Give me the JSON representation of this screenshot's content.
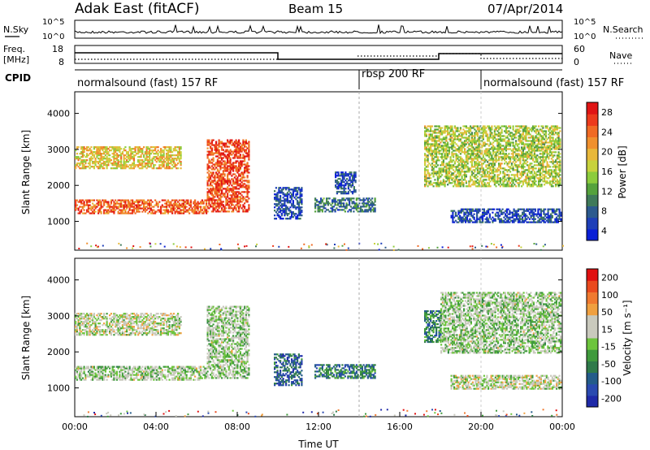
{
  "header": {
    "station": "Adak East (fitACF)",
    "beam": "Beam 15",
    "date": "07/Apr/2014"
  },
  "noise_panel": {
    "left_label": "N.Sky",
    "right_label": "N.Search",
    "left_ticks": [
      "10^5",
      "10^0"
    ],
    "right_ticks": [
      "10^5",
      "10^0"
    ]
  },
  "freq_panel": {
    "left_label": "Freq.",
    "left_unit": "[MHz]",
    "right_label": "Nave",
    "left_ticks": [
      "18",
      "8"
    ],
    "right_ticks": [
      "60",
      "0"
    ]
  },
  "cpid_panel": {
    "label": "CPID",
    "modes": [
      {
        "name": "normalsound (fast) 157 RF",
        "start_h": 0,
        "end_h": 14
      },
      {
        "name": "rbsp 200 RF",
        "start_h": 14,
        "end_h": 20
      },
      {
        "name": "normalsound (fast) 157 RF",
        "start_h": 20,
        "end_h": 24
      }
    ]
  },
  "chart_data": [
    {
      "type": "heatmap",
      "name": "power",
      "ylabel": "Slant Range [km]",
      "yticks": [
        1000,
        2000,
        3000,
        4000
      ],
      "ylim": [
        200,
        4600
      ],
      "xlim": [
        0,
        24
      ],
      "colorbar": {
        "label": "Power [dB]",
        "ticks": [
          "28",
          "24",
          "20",
          "16",
          "12",
          "8",
          "4"
        ],
        "colors": [
          "#0a1fd6",
          "#1e3fb8",
          "#2c5a8e",
          "#3f7a5a",
          "#55a23c",
          "#8ccc3c",
          "#c8d23c",
          "#e8b83a",
          "#f0902e",
          "#f06a24",
          "#ec3a1c",
          "#e01414"
        ]
      },
      "regions": [
        {
          "t0": 0.0,
          "t1": 6.5,
          "r0": 1250,
          "r1": 1650,
          "level": 0.8
        },
        {
          "t0": 0.0,
          "t1": 5.2,
          "r0": 2500,
          "r1": 3100,
          "level": 0.6
        },
        {
          "t0": 6.5,
          "t1": 8.6,
          "r0": 1300,
          "r1": 3300,
          "level": 0.85
        },
        {
          "t0": 9.8,
          "t1": 11.2,
          "r0": 1100,
          "r1": 2000,
          "level": 0.15
        },
        {
          "t0": 11.8,
          "t1": 14.8,
          "r0": 1300,
          "r1": 1700,
          "level": 0.25
        },
        {
          "t0": 12.8,
          "t1": 13.8,
          "r0": 1800,
          "r1": 2400,
          "level": 0.15
        },
        {
          "t0": 17.2,
          "t1": 23.9,
          "r0": 2000,
          "r1": 3700,
          "level": 0.5
        },
        {
          "t0": 18.5,
          "t1": 23.9,
          "r0": 1000,
          "r1": 1400,
          "level": 0.15
        }
      ]
    },
    {
      "type": "heatmap",
      "name": "velocity",
      "ylabel": "Slant Range [km]",
      "xlabel": "Time UT",
      "yticks": [
        1000,
        2000,
        3000,
        4000
      ],
      "ylim": [
        200,
        4600
      ],
      "xlim": [
        0,
        24
      ],
      "xticks": [
        "00:00",
        "04:00",
        "08:00",
        "12:00",
        "16:00",
        "20:00",
        "00:00"
      ],
      "colorbar": {
        "label": "Velocity [m s⁻¹]",
        "ticks": [
          "200",
          "100",
          "50",
          "15",
          "-15",
          "-50",
          "-100",
          "-200"
        ],
        "colors": [
          "#1f2aa8",
          "#2a4ab0",
          "#245c8a",
          "#2f7a4a",
          "#3f9a3c",
          "#6cc43c",
          "#c9c9bd",
          "#c9c9bd",
          "#f0a040",
          "#f07a30",
          "#ea4a1e",
          "#e01010"
        ]
      },
      "regions": [
        {
          "t0": 0.0,
          "t1": 6.5,
          "r0": 1250,
          "r1": 1650,
          "level": 0.5
        },
        {
          "t0": 0.0,
          "t1": 5.2,
          "r0": 2500,
          "r1": 3100,
          "level": 0.55
        },
        {
          "t0": 6.5,
          "t1": 8.6,
          "r0": 1300,
          "r1": 3300,
          "level": 0.5
        },
        {
          "t0": 9.8,
          "t1": 11.2,
          "r0": 1100,
          "r1": 2000,
          "level": 0.2
        },
        {
          "t0": 11.8,
          "t1": 14.8,
          "r0": 1300,
          "r1": 1700,
          "level": 0.28
        },
        {
          "t0": 17.2,
          "t1": 18.0,
          "r0": 2300,
          "r1": 3200,
          "level": 0.28
        },
        {
          "t0": 18.0,
          "t1": 23.9,
          "r0": 2000,
          "r1": 3700,
          "level": 0.5
        },
        {
          "t0": 18.5,
          "t1": 23.9,
          "r0": 1000,
          "r1": 1400,
          "level": 0.55
        }
      ]
    }
  ]
}
